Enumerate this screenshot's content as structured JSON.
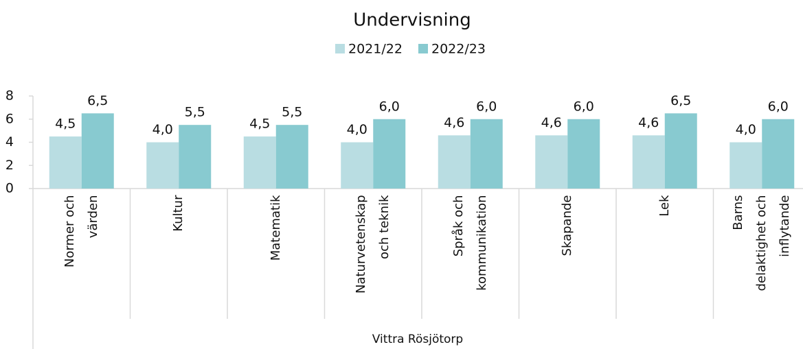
{
  "chart_data": {
    "type": "bar",
    "title": "Undervisning",
    "x_label": "Vittra Rösjötorp",
    "categories": [
      "Normer och\nvärden",
      "Kultur",
      "Matematik",
      "Naturvetenskap\noch teknik",
      "Språk och\nkommunikation",
      "Skapande",
      "Lek",
      "Barns\ndelaktighet och\ninflytande"
    ],
    "series": [
      {
        "name": "2021/22",
        "color": "#b9dde2",
        "values": [
          4.5,
          4.0,
          4.5,
          4.0,
          4.6,
          4.6,
          4.6,
          4.0
        ],
        "value_labels": [
          "4,5",
          "4,0",
          "4,5",
          "4,0",
          "4,6",
          "4,6",
          "4,6",
          "4,0"
        ]
      },
      {
        "name": "2022/23",
        "color": "#88cad0",
        "values": [
          6.5,
          5.5,
          5.5,
          6.0,
          6.0,
          6.0,
          6.5,
          6.0
        ],
        "value_labels": [
          "6,5",
          "5,5",
          "5,5",
          "6,0",
          "6,0",
          "6,0",
          "6,5",
          "6,0"
        ]
      }
    ],
    "ylim": [
      0,
      8
    ],
    "yticks": [
      0,
      2,
      4,
      6,
      8
    ],
    "grid": false,
    "legend": "top"
  }
}
